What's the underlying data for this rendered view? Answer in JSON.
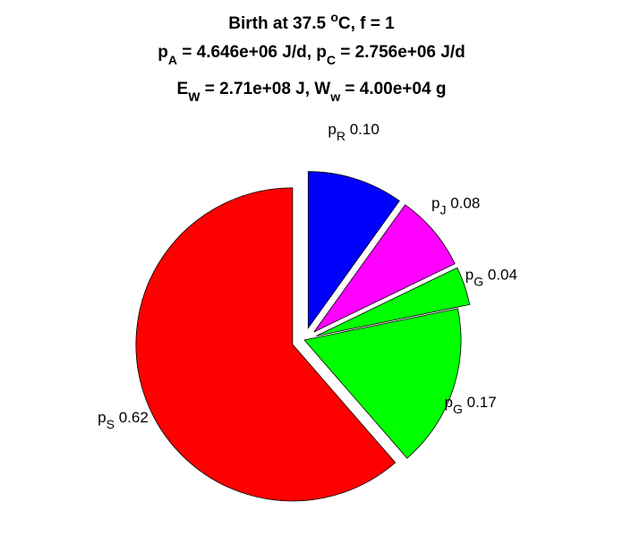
{
  "chart_data": {
    "type": "pie",
    "title": {
      "line1": {
        "pre": "Birth at 37.5 ",
        "sup": "o",
        "post": "C, f = 1"
      },
      "line2": [
        {
          "t": "p"
        },
        {
          "t": "A",
          "sub": true
        },
        {
          "t": " = 4.646e+06 J/d, p"
        },
        {
          "t": "C",
          "sub": true
        },
        {
          "t": " = 2.756e+06 J/d"
        }
      ],
      "line3": [
        {
          "t": "E"
        },
        {
          "t": "W",
          "sub": true
        },
        {
          "t": " = 2.71e+08 J, W"
        },
        {
          "t": "w",
          "sub": true
        },
        {
          "t": " = 4.00e+04 g"
        }
      ]
    },
    "slices": [
      {
        "symbol": "p",
        "sub": "R",
        "value": 0.1,
        "label": "0.10",
        "color": "#0000ff",
        "exploded": true
      },
      {
        "symbol": "p",
        "sub": "J",
        "value": 0.08,
        "label": "0.08",
        "color": "#ff00ff",
        "exploded": true
      },
      {
        "symbol": "p",
        "sub": "G",
        "value": 0.04,
        "label": "0.04",
        "color": "#00ff00",
        "exploded": true
      },
      {
        "symbol": "p",
        "sub": "G",
        "value": 0.17,
        "label": "0.17",
        "color": "#00ff00",
        "exploded": false
      },
      {
        "symbol": "p",
        "sub": "S",
        "value": 0.62,
        "label": "0.62",
        "color": "#ff0000",
        "exploded": true
      }
    ]
  }
}
